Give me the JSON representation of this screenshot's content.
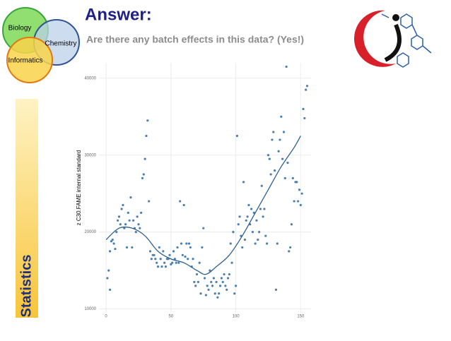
{
  "slide": {
    "title": "Answer:",
    "subtitle": "Are there any batch effects in this data? (Yes!)",
    "venn": [
      "Biology",
      "Chemistry",
      "Informatics"
    ],
    "sidebar": "Statistics"
  },
  "chart_data": {
    "type": "scatter",
    "ylabel": "z C30.FAME internal standard",
    "color": "#4a7fb0",
    "line_color": "#2e5f8f",
    "x": [
      1,
      2,
      3,
      3,
      4,
      5,
      6,
      7,
      8,
      9,
      10,
      11,
      12,
      13,
      14,
      15,
      16,
      17,
      18,
      19,
      20,
      21,
      22,
      23,
      24,
      25,
      26,
      27,
      28,
      29,
      30,
      31,
      32,
      33,
      34,
      35,
      36,
      37,
      38,
      39,
      40,
      41,
      42,
      43,
      44,
      45,
      46,
      47,
      48,
      49,
      50,
      51,
      52,
      53,
      54,
      55,
      56,
      57,
      58,
      59,
      60,
      61,
      62,
      63,
      64,
      65,
      66,
      67,
      68,
      69,
      70,
      71,
      72,
      73,
      74,
      75,
      76,
      77,
      78,
      79,
      80,
      81,
      82,
      83,
      84,
      85,
      86,
      87,
      88,
      89,
      90,
      91,
      92,
      93,
      94,
      95,
      96,
      97,
      98,
      99,
      100,
      101,
      102,
      103,
      104,
      105,
      106,
      107,
      108,
      109,
      110,
      111,
      112,
      113,
      114,
      115,
      116,
      117,
      118,
      119,
      120,
      121,
      122,
      123,
      124,
      125,
      126,
      127,
      128,
      129,
      130,
      131,
      132,
      133,
      134,
      135,
      136,
      137,
      138,
      139,
      140,
      141,
      142,
      143,
      144,
      145,
      146,
      147,
      148,
      149,
      150,
      151,
      152,
      153,
      154,
      155
    ],
    "values": [
      14000,
      15000,
      12500,
      17500,
      18800,
      19000,
      18500,
      17800,
      20000,
      21500,
      22000,
      21000,
      23000,
      23500,
      20500,
      21000,
      18000,
      22500,
      21500,
      24500,
      18000,
      21500,
      20500,
      20000,
      22000,
      21000,
      20500,
      22500,
      27000,
      27500,
      29500,
      32500,
      34500,
      24000,
      17500,
      16500,
      17000,
      17000,
      16500,
      16000,
      15500,
      18000,
      16500,
      15500,
      17500,
      16000,
      15500,
      16500,
      16500,
      17000,
      15800,
      16000,
      17500,
      16500,
      16000,
      18000,
      16000,
      24000,
      18500,
      17000,
      23500,
      16800,
      18500,
      16500,
      18500,
      18000,
      15500,
      16500,
      13500,
      13000,
      14500,
      13500,
      16000,
      12000,
      18000,
      20500,
      14000,
      11800,
      13000,
      12500,
      15000,
      13500,
      13000,
      14000,
      12000,
      13500,
      11500,
      12000,
      13000,
      14000,
      13500,
      14500,
      13000,
      12500,
      14000,
      14500,
      18500,
      16000,
      20000,
      12000,
      13000,
      32500,
      21000,
      22000,
      19500,
      18000,
      26500,
      19000,
      21500,
      22000,
      23500,
      21000,
      23000,
      20000,
      22500,
      18500,
      21500,
      19000,
      20000,
      23000,
      26000,
      22000,
      23000,
      19500,
      18500,
      30000,
      29500,
      27500,
      32000,
      33000,
      28000,
      12500,
      18500,
      30500,
      32000,
      35000,
      29500,
      33000,
      27000,
      41500,
      29000,
      17500,
      18000,
      21000,
      27000,
      24000,
      26500,
      26500,
      24000,
      25500,
      23500,
      25000,
      36000,
      34800,
      38500,
      39000
    ],
    "smooth_x": [
      0,
      10,
      20,
      30,
      40,
      50,
      60,
      70,
      77,
      85,
      95,
      105,
      115,
      125,
      135,
      145,
      150
    ],
    "smooth_values": [
      19000,
      20500,
      20500,
      19500,
      17500,
      16500,
      16000,
      15000,
      14500,
      15500,
      17000,
      19500,
      22500,
      25500,
      28500,
      31000,
      32500
    ],
    "xlim": [
      -5.5,
      158
    ],
    "ylim": [
      9500,
      42000
    ],
    "xticks": [
      0,
      50,
      100,
      150
    ],
    "yticks": [
      10000,
      20000,
      30000,
      40000
    ],
    "grid": true
  }
}
